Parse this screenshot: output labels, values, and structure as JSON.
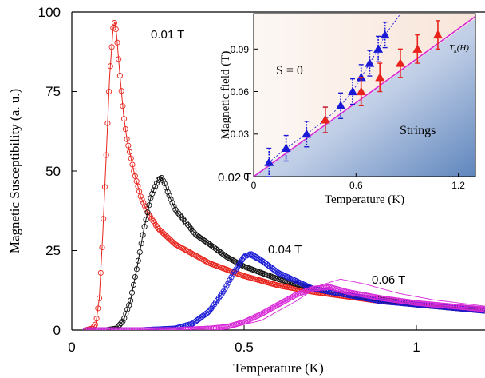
{
  "chart_data": [
    {
      "type": "line",
      "xlabel": "Temperature (K)",
      "ylabel": "Magnetic Susceptibility (a. u.)",
      "xlim": [
        0,
        1.2
      ],
      "ylim": [
        0,
        100
      ],
      "xticks": [
        "0",
        "0.5",
        "1"
      ],
      "yticks": [
        "0",
        "25",
        "50",
        "75",
        "100"
      ],
      "grid": false,
      "series": [
        {
          "name": "0.01 T",
          "color": "#e8231c",
          "marker": "open-circle",
          "x": [
            0.04,
            0.06,
            0.07,
            0.08,
            0.09,
            0.1,
            0.11,
            0.12,
            0.125,
            0.13,
            0.14,
            0.15,
            0.16,
            0.18,
            0.2,
            0.22,
            0.25,
            0.3,
            0.35,
            0.4,
            0.5,
            0.6,
            0.7,
            0.8,
            0.9,
            1.0,
            1.1,
            1.2
          ],
          "y": [
            0,
            0.5,
            2,
            10,
            30,
            55,
            80,
            95,
            97,
            93,
            80,
            68,
            60,
            50,
            42,
            37,
            32,
            27,
            24,
            21,
            17,
            14,
            12,
            10.5,
            9,
            8,
            7,
            6
          ]
        },
        {
          "name": "0.02 T",
          "color": "#111111",
          "marker": "open-circle",
          "x": [
            0.04,
            0.1,
            0.13,
            0.15,
            0.17,
            0.19,
            0.21,
            0.23,
            0.25,
            0.26,
            0.27,
            0.28,
            0.3,
            0.33,
            0.36,
            0.4,
            0.45,
            0.5,
            0.6,
            0.7,
            0.8,
            0.9,
            1.0,
            1.1,
            1.2
          ],
          "y": [
            0,
            0,
            0.5,
            3,
            9,
            20,
            32,
            42,
            47,
            48,
            46,
            43,
            38,
            34,
            30,
            27,
            23,
            20,
            16,
            13,
            11,
            9.5,
            8,
            7,
            6.5
          ]
        },
        {
          "name": "0.04 T",
          "color": "#1a1ad6",
          "marker": "open-circle",
          "x": [
            0.04,
            0.2,
            0.3,
            0.35,
            0.4,
            0.44,
            0.47,
            0.5,
            0.52,
            0.55,
            0.6,
            0.7,
            0.8,
            0.9,
            1.0,
            1.1,
            1.2
          ],
          "y": [
            0,
            0,
            0.5,
            2,
            6,
            12,
            18,
            23,
            24,
            22,
            18,
            13,
            11,
            9,
            8,
            7,
            6
          ]
        },
        {
          "name": "0.06 T",
          "color": "#d82ad8",
          "marker": "open-circle",
          "x": [
            0.04,
            0.3,
            0.4,
            0.45,
            0.5,
            0.55,
            0.6,
            0.65,
            0.7,
            0.75,
            0.8,
            0.9,
            1.0,
            1.1,
            1.2
          ],
          "y": [
            0,
            0,
            0.5,
            1,
            2.5,
            5,
            8,
            11,
            13,
            13.5,
            12,
            10,
            8.5,
            7.5,
            6.5
          ]
        }
      ],
      "model_curves": [
        {
          "color": "#1a1ad6",
          "x": [
            0.35,
            0.4,
            0.45,
            0.5,
            0.55,
            0.6,
            0.7,
            0.8,
            1.0,
            1.2
          ],
          "y": [
            1,
            5,
            14,
            24,
            21,
            17,
            13,
            11,
            8,
            6.5
          ]
        },
        {
          "color": "#d82ad8",
          "x": [
            0.45,
            0.55,
            0.65,
            0.72,
            0.78,
            0.85,
            0.95,
            1.05,
            1.2
          ],
          "y": [
            0.5,
            3,
            9,
            14,
            16,
            14.5,
            11.5,
            9.5,
            7.5
          ]
        }
      ]
    },
    {
      "type": "scatter",
      "xlabel": "Temperature (K)",
      "ylabel": "Magnetic field (T)",
      "xlim": [
        0,
        1.3
      ],
      "ylim": [
        0,
        0.115
      ],
      "xticks": [
        "0",
        "0.6",
        "1.2"
      ],
      "yticks": [
        "0",
        "0.03",
        "0.06",
        "0.09"
      ],
      "annotations": [
        "S = 0",
        "Strings",
        "T_k(H)"
      ],
      "line": {
        "name": "T_k(H)",
        "color": "#d82ad8",
        "x": [
          0,
          1.3
        ],
        "y": [
          0,
          0.113
        ]
      },
      "series": [
        {
          "color": "#1a1ad6",
          "marker": "filled-triangle",
          "x": [
            0.09,
            0.19,
            0.31,
            0.42,
            0.51,
            0.58,
            0.63,
            0.68,
            0.73,
            0.77
          ],
          "y": [
            0.01,
            0.02,
            0.03,
            0.04,
            0.05,
            0.06,
            0.07,
            0.08,
            0.09,
            0.1
          ],
          "err": [
            0.01,
            0.009,
            0.009,
            0.009,
            0.009,
            0.009,
            0.009,
            0.009,
            0.009,
            0.009
          ]
        },
        {
          "color": "#e8231c",
          "marker": "filled-triangle",
          "x": [
            0.42,
            0.63,
            0.74,
            0.86,
            0.96,
            1.08
          ],
          "y": [
            0.04,
            0.06,
            0.07,
            0.08,
            0.09,
            0.1
          ],
          "err": [
            0.009,
            0.01,
            0.01,
            0.01,
            0.01,
            0.01
          ]
        }
      ]
    }
  ],
  "labels": {
    "s0": "S = 0",
    "strings": "Strings",
    "tk_main": "T",
    "tk_sub": "k",
    "tk_tail": "(H)"
  }
}
